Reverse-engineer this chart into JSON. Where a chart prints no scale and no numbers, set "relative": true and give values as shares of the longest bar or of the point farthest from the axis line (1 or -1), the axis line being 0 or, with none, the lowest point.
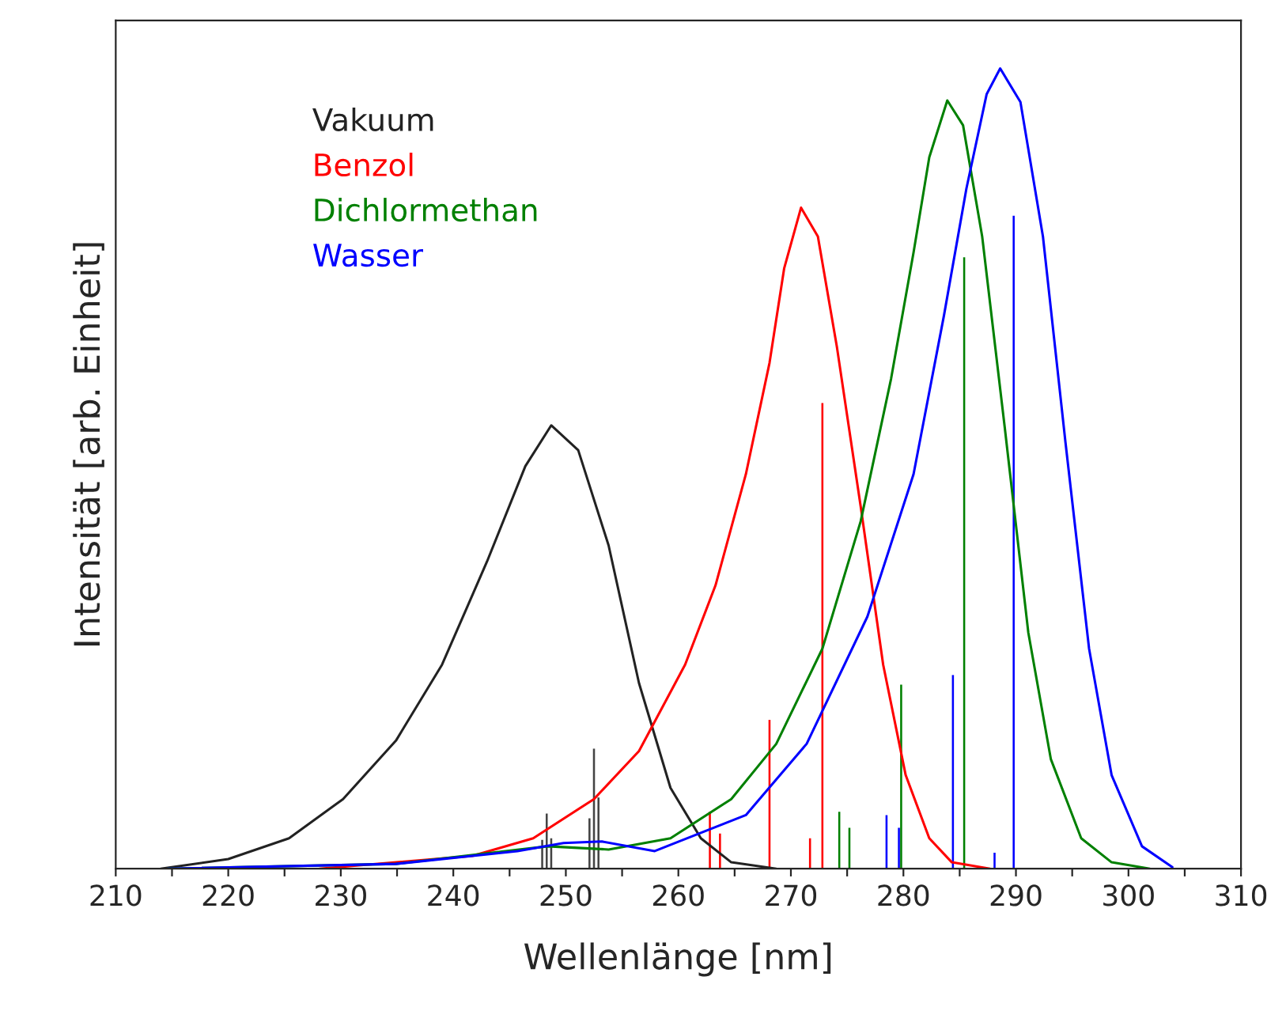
{
  "chart_data": {
    "type": "line",
    "relative": true,
    "xlabel": "Wellenlänge [nm]",
    "ylabel": "Intensität [arb. Einheit]",
    "xlim": [
      210,
      310
    ],
    "xticks": [
      210,
      {
        "value": 215,
        "label": null
      },
      220,
      {
        "value": 225,
        "label": null
      },
      230,
      {
        "value": 235,
        "label": null
      },
      240,
      {
        "value": 245,
        "label": null
      },
      250,
      {
        "value": 255,
        "label": null
      },
      260,
      {
        "value": 265,
        "label": null
      },
      270,
      {
        "value": 275,
        "label": null
      },
      280,
      {
        "value": 285,
        "label": null
      },
      290,
      {
        "value": 295,
        "label": null
      },
      300,
      {
        "value": 305,
        "label": null
      },
      310
    ],
    "legend": "top left",
    "grid": false,
    "line_style": "solid",
    "marker": "none",
    "series": [
      {
        "name": "Vakuum",
        "color": "#222222",
        "x": [
          214,
          220,
          225.4,
          230.2,
          234.9,
          239,
          243,
          246.4,
          248.7,
          251.1,
          253.8,
          256.5,
          259.3,
          262,
          264.7,
          268.7
        ],
        "values": [
          0,
          0.012,
          0.038,
          0.087,
          0.16,
          0.255,
          0.384,
          0.503,
          0.554,
          0.523,
          0.404,
          0.232,
          0.101,
          0.038,
          0.008,
          0
        ]
      },
      {
        "name": "Benzol",
        "color": "#ff0000",
        "x": [
          228.1,
          241.7,
          247.1,
          252.5,
          256.5,
          260.6,
          263.3,
          266,
          268.1,
          269.4,
          270.9,
          272.4,
          274.1,
          276.2,
          278.2,
          280.2,
          282.3,
          284.3,
          287.7
        ],
        "values": [
          0,
          0.016,
          0.038,
          0.087,
          0.147,
          0.255,
          0.354,
          0.493,
          0.632,
          0.75,
          0.826,
          0.79,
          0.651,
          0.453,
          0.255,
          0.117,
          0.038,
          0.008,
          0
        ]
      },
      {
        "name": "Dichlormethan",
        "color": "#008000",
        "x": [
          214.6,
          234.9,
          248.4,
          253.8,
          259.3,
          264.7,
          268.7,
          272.8,
          276.2,
          278.9,
          280.9,
          282.3,
          283.9,
          285.3,
          287,
          289,
          291.1,
          293.1,
          295.8,
          298.5,
          301.9
        ],
        "values": [
          0,
          0.006,
          0.028,
          0.024,
          0.038,
          0.087,
          0.156,
          0.275,
          0.434,
          0.612,
          0.77,
          0.889,
          0.96,
          0.929,
          0.79,
          0.552,
          0.295,
          0.137,
          0.038,
          0.008,
          0
        ]
      },
      {
        "name": "Wasser",
        "color": "#0000ff",
        "x": [
          214.6,
          234.9,
          245.7,
          249.8,
          253.2,
          257.9,
          266,
          271.4,
          276.8,
          280.9,
          283.6,
          285.6,
          287.4,
          288.6,
          290.4,
          292.4,
          294.4,
          296.5,
          298.5,
          301.2,
          303.9
        ],
        "values": [
          0,
          0.006,
          0.022,
          0.032,
          0.034,
          0.022,
          0.067,
          0.156,
          0.315,
          0.493,
          0.691,
          0.85,
          0.968,
          1.0,
          0.958,
          0.79,
          0.533,
          0.275,
          0.117,
          0.028,
          0.002
        ]
      },
      {
        "type": "bar",
        "color": "#444444",
        "x": [
          247.9,
          248.3,
          248.7,
          252.1,
          252.5,
          252.9
        ],
        "values": [
          0.036,
          0.069,
          0.038,
          0.063,
          0.15,
          0.089
        ]
      },
      {
        "type": "bar",
        "color": "#ff0000",
        "x": [
          262.8,
          263.7,
          268.1,
          271.7,
          272.8
        ],
        "values": [
          0.071,
          0.044,
          0.186,
          0.038,
          0.582
        ]
      },
      {
        "type": "bar",
        "color": "#008000",
        "x": [
          274.3,
          275.2,
          279.8,
          285.4
        ],
        "values": [
          0.071,
          0.051,
          0.23,
          0.764
        ]
      },
      {
        "type": "bar",
        "color": "#0000ff",
        "x": [
          278.5,
          279.6,
          284.4,
          288.1,
          289.8
        ],
        "values": [
          0.067,
          0.051,
          0.242,
          0.02,
          0.816
        ]
      }
    ]
  }
}
